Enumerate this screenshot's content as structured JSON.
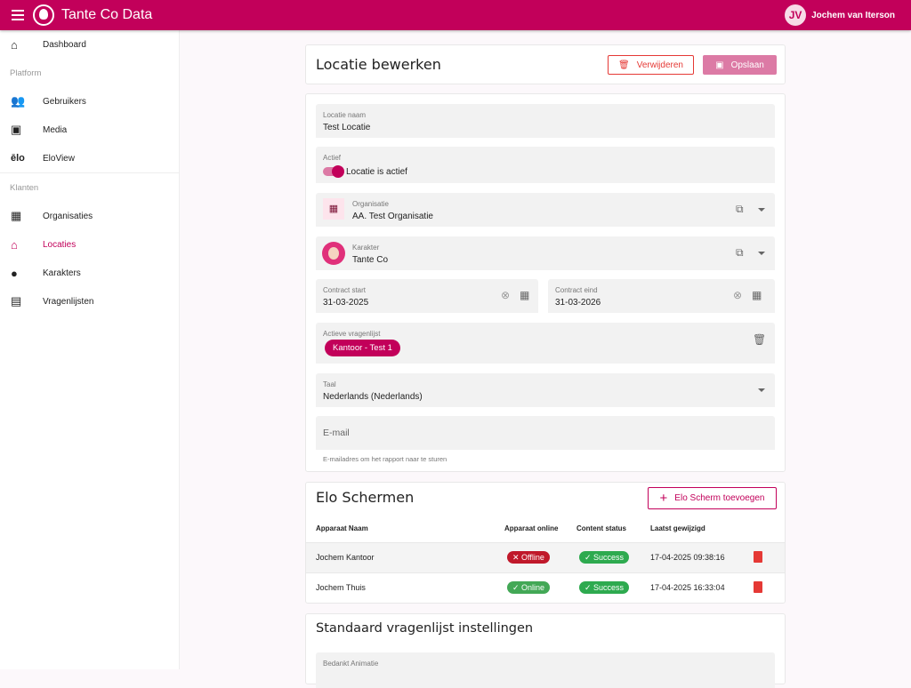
{
  "app": {
    "title": "Tante Co Data",
    "user_initials": "JV",
    "user_name": "Jochem van Iterson"
  },
  "colors": {
    "brand": "#c2005a",
    "danger": "#e53935",
    "success": "#2eaa4f"
  },
  "sidebar": {
    "items": [
      {
        "label": "Dashboard",
        "icon": "home-icon"
      },
      {
        "section": "Platform"
      },
      {
        "label": "Gebruikers",
        "icon": "people-icon"
      },
      {
        "label": "Media",
        "icon": "photo-library-icon"
      },
      {
        "label": "EloView",
        "icon": "elo-icon"
      },
      {
        "section": "Klanten"
      },
      {
        "label": "Organisaties",
        "icon": "building-icon"
      },
      {
        "label": "Locaties",
        "icon": "house-icon",
        "active": true
      },
      {
        "label": "Karakters",
        "icon": "account-circle-icon"
      },
      {
        "label": "Vragenlijsten",
        "icon": "document-icon"
      }
    ]
  },
  "header": {
    "title": "Locatie bewerken",
    "delete_label": "Verwijderen",
    "save_label": "Opslaan"
  },
  "form": {
    "name": {
      "label": "Locatie naam",
      "value": "Test Locatie"
    },
    "active": {
      "label": "Actief",
      "toggle_label": "Locatie is actief",
      "on": true
    },
    "organisation": {
      "label": "Organisatie",
      "value": "AA. Test Organisatie"
    },
    "character": {
      "label": "Karakter",
      "value": "Tante Co"
    },
    "contract_start": {
      "label": "Contract start",
      "value": "31-03-2025"
    },
    "contract_end": {
      "label": "Contract eind",
      "value": "31-03-2026"
    },
    "questionnaire": {
      "label": "Actieve vragenlijst",
      "chip": "Kantoor - Test 1"
    },
    "language": {
      "label": "Taal",
      "value": "Nederlands (Nederlands)"
    },
    "email": {
      "placeholder": "E-mail",
      "hint": "E-mailadres om het rapport naar te sturen"
    }
  },
  "elo": {
    "title": "Elo Schermen",
    "add_label": "Elo Scherm toevoegen",
    "columns": [
      "Apparaat Naam",
      "Apparaat online",
      "Content status",
      "Laatst gewijzigd"
    ],
    "rows": [
      {
        "name": "Jochem Kantoor",
        "online": "Offline",
        "content": "Success",
        "modified": "17-04-2025 09:38:16"
      },
      {
        "name": "Jochem Thuis",
        "online": "Online",
        "content": "Success",
        "modified": "17-04-2025 16:33:04"
      }
    ]
  },
  "defaults": {
    "title": "Standaard vragenlijst instellingen",
    "field_label": "Bedankt Animatie"
  }
}
